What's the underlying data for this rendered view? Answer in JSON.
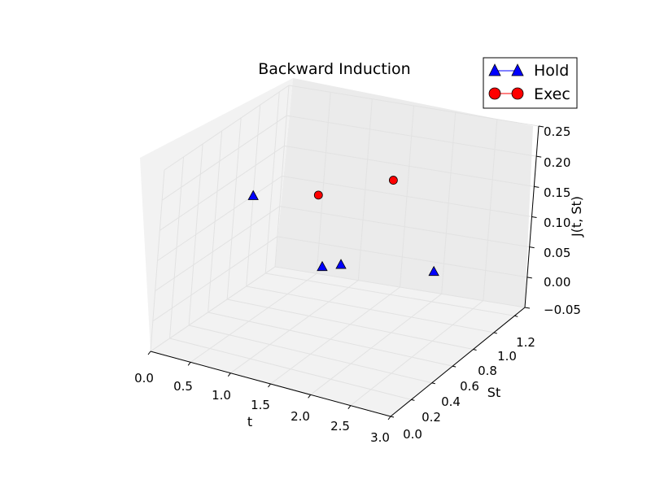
{
  "chart_data": {
    "type": "scatter",
    "title": "Backward Induction",
    "xlabel": "t",
    "ylabel": "St",
    "zlabel": "J(t, St)",
    "xlim": [
      0.0,
      3.0
    ],
    "ylim": [
      0.0,
      1.3
    ],
    "zlim": [
      -0.05,
      0.25
    ],
    "xticks": [
      "0.0",
      "0.5",
      "1.0",
      "1.5",
      "2.0",
      "2.5",
      "3.0"
    ],
    "yticks": [
      "0.0",
      "0.2",
      "0.4",
      "0.6",
      "0.8",
      "1.0",
      "1.2"
    ],
    "zticks": [
      "−0.05",
      "0.00",
      "0.05",
      "0.10",
      "0.15",
      "0.20",
      "0.25"
    ],
    "grid": true,
    "legend_position": "top-right",
    "series": [
      {
        "name": "Hold",
        "marker": "triangle",
        "color": "#0000ff",
        "points": [
          {
            "t": 0.0,
            "St": 1.0,
            "J": 0.1
          },
          {
            "t": 1.0,
            "St": 1.1,
            "J": 0.0
          },
          {
            "t": 2.0,
            "St": 1.2,
            "J": 0.0
          },
          {
            "t": 1.0,
            "St": 0.9,
            "J": 0.02
          }
        ]
      },
      {
        "name": "Exec",
        "marker": "circle",
        "color": "#ff0000",
        "points": [
          {
            "t": 2.0,
            "St": 0.7,
            "J": 0.215
          },
          {
            "t": 1.0,
            "St": 0.8,
            "J": 0.15
          }
        ]
      }
    ]
  }
}
